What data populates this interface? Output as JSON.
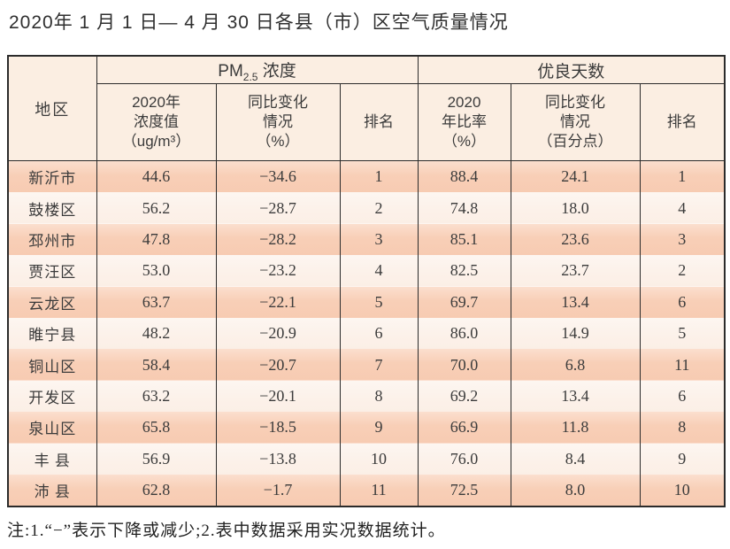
{
  "title": "2020年 1 月 1 日— 4 月 30 日各县（市）区空气质量情况",
  "table": {
    "header": {
      "region": "地区",
      "pm25": {
        "prefix": "PM",
        "sub": "2.5",
        "suffix": " 浓度"
      },
      "good_days": "优良天数",
      "sub_columns": [
        "2020年\n浓度值\n（ug/m³）",
        "同比变化\n情况\n（%）",
        "排名",
        "2020\n年比率\n（%）",
        "同比变化\n情况\n（百分点）",
        "排名"
      ]
    },
    "rows": [
      {
        "region": "新沂市",
        "pm25_value": "44.6",
        "pm25_change": "−34.6",
        "pm25_rank": "1",
        "good_rate": "88.4",
        "good_change": "24.1",
        "good_rank": "1"
      },
      {
        "region": "鼓楼区",
        "pm25_value": "56.2",
        "pm25_change": "−28.7",
        "pm25_rank": "2",
        "good_rate": "74.8",
        "good_change": "18.0",
        "good_rank": "4"
      },
      {
        "region": "邳州市",
        "pm25_value": "47.8",
        "pm25_change": "−28.2",
        "pm25_rank": "3",
        "good_rate": "85.1",
        "good_change": "23.6",
        "good_rank": "3"
      },
      {
        "region": "贾汪区",
        "pm25_value": "53.0",
        "pm25_change": "−23.2",
        "pm25_rank": "4",
        "good_rate": "82.5",
        "good_change": "23.7",
        "good_rank": "2"
      },
      {
        "region": "云龙区",
        "pm25_value": "63.7",
        "pm25_change": "−22.1",
        "pm25_rank": "5",
        "good_rate": "69.7",
        "good_change": "13.4",
        "good_rank": "6"
      },
      {
        "region": "睢宁县",
        "pm25_value": "48.2",
        "pm25_change": "−20.9",
        "pm25_rank": "6",
        "good_rate": "86.0",
        "good_change": "14.9",
        "good_rank": "5"
      },
      {
        "region": "铜山区",
        "pm25_value": "58.4",
        "pm25_change": "−20.7",
        "pm25_rank": "7",
        "good_rate": "70.0",
        "good_change": "6.8",
        "good_rank": "11"
      },
      {
        "region": "开发区",
        "pm25_value": "63.2",
        "pm25_change": "−20.1",
        "pm25_rank": "8",
        "good_rate": "69.2",
        "good_change": "13.4",
        "good_rank": "6"
      },
      {
        "region": "泉山区",
        "pm25_value": "65.8",
        "pm25_change": "−18.5",
        "pm25_rank": "9",
        "good_rate": "66.9",
        "good_change": "11.8",
        "good_rank": "8"
      },
      {
        "region": "丰 县",
        "pm25_value": "56.9",
        "pm25_change": "−13.8",
        "pm25_rank": "10",
        "good_rate": "76.0",
        "good_change": "8.4",
        "good_rank": "9"
      },
      {
        "region": "沛 县",
        "pm25_value": "62.8",
        "pm25_change": "−1.7",
        "pm25_rank": "11",
        "good_rate": "72.5",
        "good_change": "8.0",
        "good_rank": "10"
      }
    ]
  },
  "footnote": "注:1.“−”表示下降或减少;2.表中数据采用实况数据统计。",
  "colors": {
    "row_odd": "#f8cfb7",
    "row_even": "#fcf1e9",
    "header_bg": "#fbeee2",
    "border": "#2b2b2b",
    "text": "#3b3b3b"
  }
}
